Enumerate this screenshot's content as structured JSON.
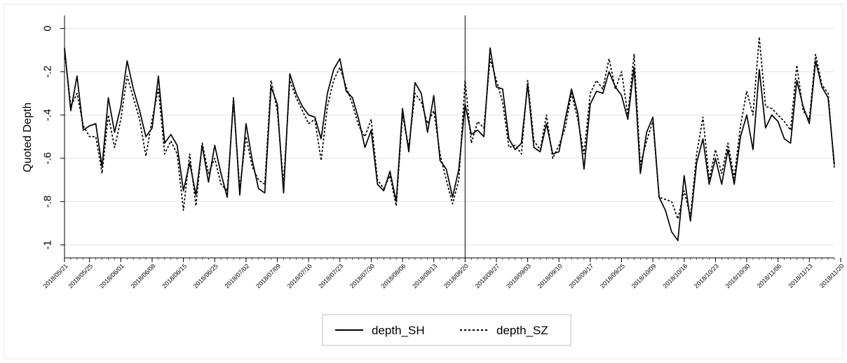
{
  "chart_data": {
    "type": "line",
    "ylabel": "Quoted Depth",
    "xlabel": "",
    "ylim": [
      -1.06,
      0.06
    ],
    "yticks": [
      0,
      -0.2,
      -0.4,
      -0.6,
      -0.8,
      -1
    ],
    "ytick_labels": [
      "0",
      "-.2",
      "-.4",
      "-.6",
      "-.8",
      "-1"
    ],
    "xtick_labels": [
      "2018/05/21",
      "2018/05/25",
      "2018/06/01",
      "2018/06/08",
      "2018/06/15",
      "2018/06/25",
      "2018/07/02",
      "2018/07/09",
      "2018/07/16",
      "2018/07/23",
      "2018/07/30",
      "2018/08/06",
      "2018/08/13",
      "2018/08/20",
      "2018/08/27",
      "2018/09/03",
      "2018/09/10",
      "2018/09/17",
      "2018/09/25",
      "2018/10/09",
      "2018/10/16",
      "2018/10/23",
      "2018/10/30",
      "2018/11/06",
      "2018/11/13",
      "2018/11/20"
    ],
    "xtick_index": [
      0,
      4,
      9,
      14,
      19,
      24,
      29,
      34,
      39,
      44,
      49,
      54,
      59,
      64,
      69,
      74,
      79,
      84,
      89,
      94,
      99,
      104,
      109,
      114,
      119,
      124
    ],
    "vline_index": 64,
    "grid": true,
    "legend_position": "bottom",
    "series": [
      {
        "name": "depth_SH",
        "style": "solid",
        "color": "#000000",
        "values": [
          -0.09,
          -0.38,
          -0.22,
          -0.47,
          -0.45,
          -0.44,
          -0.64,
          -0.32,
          -0.48,
          -0.36,
          -0.15,
          -0.28,
          -0.38,
          -0.5,
          -0.46,
          -0.22,
          -0.53,
          -0.49,
          -0.54,
          -0.75,
          -0.62,
          -0.77,
          -0.54,
          -0.71,
          -0.54,
          -0.67,
          -0.78,
          -0.32,
          -0.77,
          -0.44,
          -0.61,
          -0.74,
          -0.76,
          -0.27,
          -0.35,
          -0.76,
          -0.21,
          -0.3,
          -0.36,
          -0.4,
          -0.41,
          -0.51,
          -0.3,
          -0.19,
          -0.14,
          -0.29,
          -0.32,
          -0.42,
          -0.55,
          -0.47,
          -0.72,
          -0.75,
          -0.66,
          -0.8,
          -0.37,
          -0.57,
          -0.25,
          -0.3,
          -0.48,
          -0.31,
          -0.61,
          -0.65,
          -0.78,
          -0.65,
          -0.35,
          -0.49,
          -0.47,
          -0.5,
          -0.09,
          -0.27,
          -0.28,
          -0.51,
          -0.56,
          -0.53,
          -0.26,
          -0.55,
          -0.57,
          -0.44,
          -0.58,
          -0.57,
          -0.42,
          -0.28,
          -0.39,
          -0.65,
          -0.35,
          -0.29,
          -0.3,
          -0.2,
          -0.27,
          -0.31,
          -0.42,
          -0.18,
          -0.67,
          -0.48,
          -0.41,
          -0.78,
          -0.84,
          -0.94,
          -0.98,
          -0.68,
          -0.89,
          -0.62,
          -0.51,
          -0.72,
          -0.6,
          -0.72,
          -0.56,
          -0.72,
          -0.5,
          -0.4,
          -0.56,
          -0.19,
          -0.46,
          -0.4,
          -0.43,
          -0.51,
          -0.53,
          -0.24,
          -0.36,
          -0.44,
          -0.15,
          -0.27,
          -0.32,
          -0.63
        ]
      },
      {
        "name": "depth_SZ",
        "style": "dashed",
        "color": "#000000",
        "values": [
          -0.1,
          -0.36,
          -0.3,
          -0.45,
          -0.5,
          -0.5,
          -0.67,
          -0.4,
          -0.55,
          -0.42,
          -0.22,
          -0.32,
          -0.42,
          -0.59,
          -0.42,
          -0.28,
          -0.58,
          -0.52,
          -0.58,
          -0.84,
          -0.58,
          -0.82,
          -0.53,
          -0.67,
          -0.6,
          -0.72,
          -0.75,
          -0.34,
          -0.74,
          -0.5,
          -0.64,
          -0.7,
          -0.72,
          -0.24,
          -0.38,
          -0.72,
          -0.24,
          -0.32,
          -0.38,
          -0.44,
          -0.42,
          -0.61,
          -0.36,
          -0.24,
          -0.18,
          -0.27,
          -0.35,
          -0.45,
          -0.5,
          -0.42,
          -0.7,
          -0.74,
          -0.68,
          -0.82,
          -0.4,
          -0.55,
          -0.3,
          -0.34,
          -0.44,
          -0.38,
          -0.58,
          -0.7,
          -0.81,
          -0.7,
          -0.24,
          -0.53,
          -0.43,
          -0.46,
          -0.14,
          -0.24,
          -0.34,
          -0.55,
          -0.54,
          -0.58,
          -0.24,
          -0.52,
          -0.56,
          -0.4,
          -0.6,
          -0.54,
          -0.46,
          -0.3,
          -0.42,
          -0.58,
          -0.3,
          -0.24,
          -0.28,
          -0.14,
          -0.28,
          -0.2,
          -0.4,
          -0.12,
          -0.63,
          -0.52,
          -0.43,
          -0.78,
          -0.79,
          -0.8,
          -0.88,
          -0.75,
          -0.87,
          -0.58,
          -0.41,
          -0.7,
          -0.56,
          -0.67,
          -0.53,
          -0.69,
          -0.45,
          -0.29,
          -0.4,
          -0.04,
          -0.36,
          -0.37,
          -0.4,
          -0.43,
          -0.47,
          -0.17,
          -0.38,
          -0.42,
          -0.12,
          -0.26,
          -0.3,
          -0.65
        ]
      }
    ]
  }
}
